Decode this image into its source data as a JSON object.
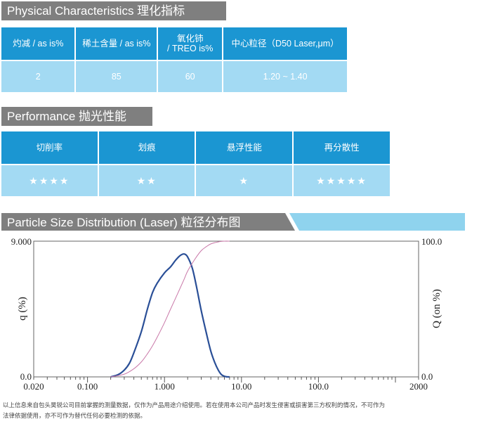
{
  "physical": {
    "title": "Physical Characteristics 理化指标",
    "headers": [
      "灼减 / as is%",
      "稀土含量 / as is%",
      "氧化铈\n/ TREO is%",
      "中心粒径（D50 Laser,μm）"
    ],
    "values": [
      "2",
      "85",
      "60",
      "1.20 ~ 1.40"
    ]
  },
  "performance": {
    "title": "Performance 抛光性能",
    "headers": [
      "切削率",
      "划痕",
      "悬浮性能",
      "再分散性"
    ],
    "stars": [
      "★★★★",
      "★★",
      "★",
      "★★★★★"
    ]
  },
  "distribution": {
    "title": "Particle Size Distribution (Laser) 粒径分布图"
  },
  "chart_data": {
    "type": "line",
    "title": "Particle Size Distribution (Laser) 粒径分布图",
    "xlabel": "",
    "ylabel": "q (%)",
    "y2label": "Q (on %)",
    "x_scale": "log",
    "xlim": [
      0.02,
      2000
    ],
    "ylim": [
      0,
      9.0
    ],
    "y2lim": [
      0,
      100
    ],
    "x_tick_labels": [
      "0.020",
      "0.100",
      "1.000",
      "10.00",
      "100.0",
      "2000"
    ],
    "x_ticks": [
      0.02,
      0.1,
      1,
      10,
      100,
      2000
    ],
    "y_tick_labels": [
      "9.000",
      "0.0"
    ],
    "y2_tick_labels": [
      "100.0",
      "0.0"
    ],
    "series": [
      {
        "name": "",
        "axis": "left",
        "color": "#2a4f97",
        "x": [
          0.2,
          0.25,
          0.3,
          0.35,
          0.4,
          0.5,
          0.6,
          0.7,
          0.8,
          1.0,
          1.2,
          1.4,
          1.6,
          1.8,
          2.0,
          2.3,
          2.6,
          3.0,
          3.5,
          4.0,
          4.5,
          5.0,
          5.5,
          6.2,
          7.0
        ],
        "y": [
          0.0,
          0.15,
          0.45,
          0.9,
          1.6,
          3.0,
          4.5,
          5.6,
          6.2,
          6.9,
          7.3,
          7.75,
          8.05,
          8.15,
          7.95,
          7.2,
          6.0,
          4.4,
          2.9,
          1.7,
          0.95,
          0.45,
          0.15,
          0.02,
          0.0
        ]
      },
      {
        "name": "",
        "axis": "right",
        "color": "#c978a8",
        "x": [
          0.2,
          0.3,
          0.4,
          0.5,
          0.6,
          0.7,
          0.8,
          1.0,
          1.2,
          1.5,
          1.8,
          2.0,
          2.5,
          3.0,
          3.5,
          4.0,
          5.0,
          6.0,
          7.0
        ],
        "y": [
          0,
          2,
          6,
          11,
          17,
          23,
          29,
          40,
          50,
          62,
          72,
          78,
          87,
          93,
          96,
          98,
          99.5,
          100,
          100
        ]
      }
    ],
    "grid": false,
    "legend": "none"
  },
  "footnote": {
    "line1": "以上信息来自包头昊锐公司目前掌握的测量数据，仅作为产品用途介绍使用。若在使用本公司产品时发生侵害或损害第三方权利的情况，不可作为",
    "line2": "法律依据使用，亦不可作为替代任何必要检测的依据。"
  },
  "colors": {
    "header_blue": "#1b96d2",
    "cell_light": "#a3daf3",
    "section_gray": "#7f7f7f",
    "banner_light": "#8fd3ee"
  }
}
